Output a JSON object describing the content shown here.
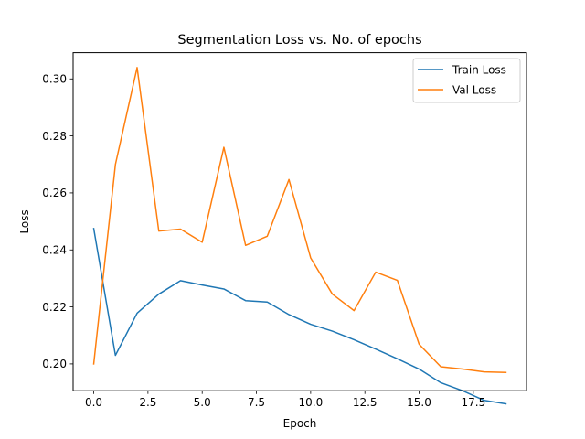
{
  "chart_data": {
    "type": "line",
    "title": "Segmentation Loss vs. No. of epochs",
    "xlabel": "Epoch",
    "ylabel": "Loss",
    "xlim": [
      -0.95,
      19.95
    ],
    "ylim": [
      0.1906,
      0.3092
    ],
    "xticks": [
      0,
      2.5,
      5,
      7.5,
      10,
      12.5,
      15,
      17.5
    ],
    "xtick_labels": [
      "0.0",
      "2.5",
      "5.0",
      "7.5",
      "10.0",
      "12.5",
      "15.0",
      "17.5"
    ],
    "yticks": [
      0.2,
      0.22,
      0.24,
      0.26,
      0.28,
      0.3
    ],
    "ytick_labels": [
      "0.20",
      "0.22",
      "0.24",
      "0.26",
      "0.28",
      "0.30"
    ],
    "grid": false,
    "legend_position": "top-right",
    "x": [
      0,
      1,
      2,
      3,
      4,
      5,
      6,
      7,
      8,
      9,
      10,
      11,
      12,
      13,
      14,
      15,
      16,
      17,
      18,
      19
    ],
    "series": [
      {
        "name": "Train Loss",
        "color": "#1f77b4",
        "values": [
          0.2475,
          0.203,
          0.2178,
          0.2245,
          0.2292,
          0.2277,
          0.2263,
          0.2222,
          0.2217,
          0.2173,
          0.2139,
          0.2115,
          0.2085,
          0.2052,
          0.2018,
          0.1982,
          0.1934,
          0.1906,
          0.1872,
          0.186
        ]
      },
      {
        "name": "Val Loss",
        "color": "#ff7f0e",
        "values": [
          0.2,
          0.27,
          0.304,
          0.2466,
          0.2473,
          0.2427,
          0.276,
          0.2416,
          0.2448,
          0.2647,
          0.2372,
          0.2245,
          0.2187,
          0.2322,
          0.2293,
          0.2069,
          0.199,
          0.1982,
          0.1972,
          0.197
        ]
      }
    ]
  }
}
